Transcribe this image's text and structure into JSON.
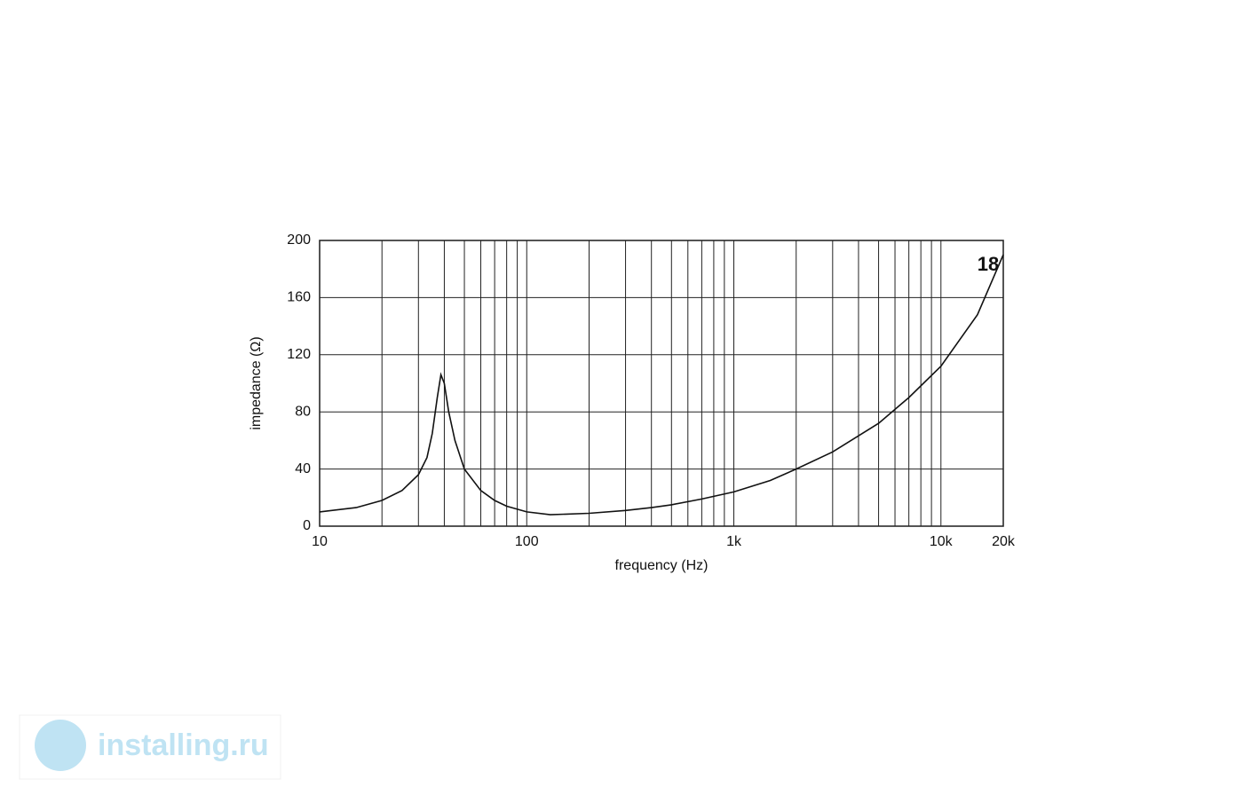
{
  "chart_data": {
    "type": "line",
    "xlabel": "frequency (Hz)",
    "ylabel": "impedance (Ω)",
    "logo": "18",
    "x": [
      10,
      15,
      20,
      25,
      30,
      33,
      35,
      37,
      38.5,
      40,
      42,
      45,
      50,
      60,
      70,
      80,
      100,
      130,
      200,
      300,
      400,
      500,
      700,
      1000,
      1500,
      2000,
      3000,
      5000,
      7000,
      10000,
      15000,
      20000
    ],
    "series": [
      {
        "name": "impedance",
        "color": "#111111",
        "values": [
          10,
          13,
          18,
          25,
          36,
          48,
          65,
          90,
          106,
          100,
          80,
          60,
          40,
          25,
          18,
          14,
          10,
          8,
          9,
          11,
          13,
          15,
          19,
          24,
          32,
          40,
          52,
          72,
          90,
          112,
          148,
          190
        ]
      }
    ],
    "xlog": true,
    "xlim": [
      10,
      20000
    ],
    "xticks": [
      {
        "value": 10,
        "label": "10"
      },
      {
        "value": 100,
        "label": "100"
      },
      {
        "value": 1000,
        "label": "1k"
      },
      {
        "value": 10000,
        "label": "10k"
      },
      {
        "value": 20000,
        "label": "20k"
      }
    ],
    "xgrid": [
      20,
      30,
      40,
      50,
      60,
      70,
      80,
      90,
      200,
      300,
      400,
      500,
      600,
      700,
      800,
      900,
      2000,
      3000,
      4000,
      5000,
      6000,
      7000,
      8000,
      9000
    ],
    "ylim": [
      0,
      200
    ],
    "yticks": [
      0,
      40,
      80,
      120,
      160,
      200
    ],
    "grid": true
  },
  "watermark": "installing.ru"
}
